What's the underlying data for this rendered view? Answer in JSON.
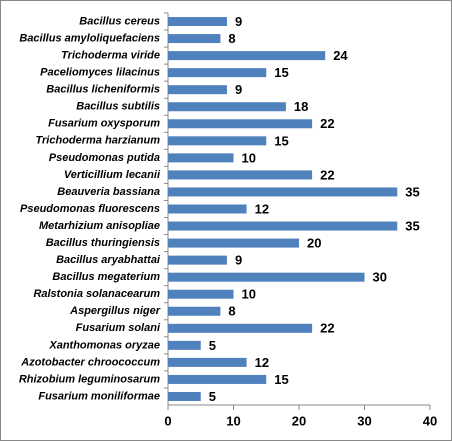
{
  "chart_data": {
    "type": "hbar",
    "categories": [
      "Bacillus cereus",
      "Bacillus amyloliquefaciens",
      "Trichoderma viride",
      "Paceliomyces lilacinus",
      "Bacillus licheniformis",
      "Bacillus subtilis",
      "Fusarium oxysporum",
      "Trichoderma harzianum",
      "Pseudomonas putida",
      "Verticillium lecanii",
      "Beauveria bassiana",
      "Pseudomonas fluorescens",
      "Metarhizium anisopliae",
      "Bacillus thuringiensis",
      "Bacillus aryabhattai",
      "Bacillus megaterium",
      "Ralstonia solanacearum",
      "Aspergillus niger",
      "Fusarium solani",
      "Xanthomonas oryzae",
      "Azotobacter chroococcum",
      "Rhizobium leguminosarum",
      "Fusarium moniliformae"
    ],
    "values": [
      9,
      8,
      24,
      15,
      9,
      18,
      22,
      15,
      10,
      22,
      35,
      12,
      35,
      20,
      9,
      30,
      10,
      8,
      22,
      5,
      12,
      15,
      5
    ],
    "color": "#4f81bd",
    "xlim": [
      0,
      40
    ],
    "xticks": [
      0,
      10,
      20,
      30,
      40
    ],
    "grid": false
  }
}
